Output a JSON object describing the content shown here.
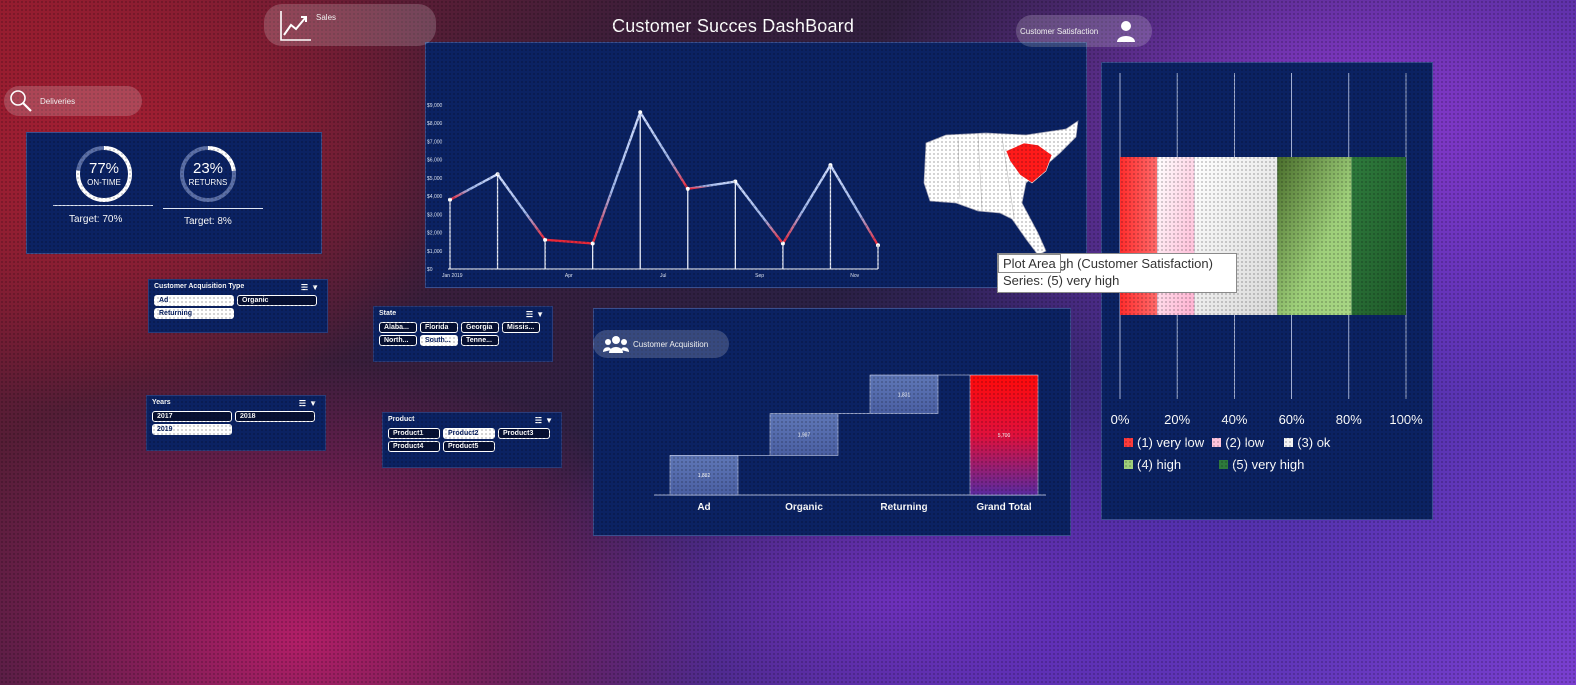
{
  "dashboard": {
    "title": "Customer  Succes DashBoard"
  },
  "nav": {
    "sales": "Sales",
    "deliveries": "Deliveries",
    "customer_satisfaction": "Customer Satisfaction",
    "customer_acquisition": "Customer Acquisition"
  },
  "kpis": [
    {
      "value": "77%",
      "percent": 77,
      "label": "ON-TIME",
      "target": "Target: 70%"
    },
    {
      "value": "23%",
      "percent": 23,
      "label": "RETURNS",
      "target": "Target: 8%"
    }
  ],
  "slicers": {
    "acquisition": {
      "title": "Customer Acquisition Type",
      "items": [
        "Ad",
        "Organic",
        "Returning"
      ],
      "selected": [
        true,
        false,
        true
      ]
    },
    "years": {
      "title": "Years",
      "items": [
        "2017",
        "2018",
        "2019"
      ],
      "selected": [
        false,
        false,
        true
      ]
    },
    "state": {
      "title": "State",
      "items": [
        "Alaba...",
        "Florida",
        "Georgia",
        "Missis...",
        "North...",
        "South...",
        "Tenne..."
      ],
      "selected": [
        false,
        false,
        false,
        false,
        false,
        true,
        false
      ]
    },
    "product": {
      "title": "Product",
      "items": [
        "Product1",
        "Product2",
        "Product3",
        "Product4",
        "Product5"
      ],
      "selected": [
        false,
        true,
        false,
        false,
        false
      ]
    }
  },
  "tooltip": {
    "plot_area": "Plot Area",
    "line1": "gh (Customer Satisfaction)",
    "line2": "Series: (5) very high"
  },
  "colors": {
    "panel": "#0b2262",
    "accent_red": "#ff1a1a",
    "line_light": "#b7c9f0"
  },
  "chart_data": [
    {
      "type": "line",
      "title": "Sales",
      "y_tick_labels": [
        "$0",
        "$1,000",
        "$2,000",
        "$3,000",
        "$4,000",
        "$5,000",
        "$6,000",
        "$7,000",
        "$8,000",
        "$9,000"
      ],
      "x_tick_labels": [
        "Jan 2019",
        "Apr",
        "Jul",
        "Sep",
        "Nov"
      ],
      "ylim": [
        0,
        9000
      ],
      "series": [
        {
          "name": "Sales",
          "values": [
            3800,
            5200,
            1600,
            1400,
            8600,
            4400,
            4800,
            1400,
            5700,
            1300
          ]
        }
      ]
    },
    {
      "type": "bar",
      "subtype": "waterfall",
      "title": "Customer Acquisition",
      "categories": [
        "Ad",
        "Organic",
        "Returning",
        "Grand Total"
      ],
      "values": [
        1882,
        1987,
        1831,
        5700
      ],
      "value_labels": [
        "1,882",
        "1,987",
        "1,831",
        "5,700"
      ]
    },
    {
      "type": "bar",
      "subtype": "100% stacked",
      "title": "Customer Satisfaction",
      "x_tick_labels": [
        "0%",
        "20%",
        "40%",
        "60%",
        "80%",
        "100%"
      ],
      "xlim": [
        0,
        100
      ],
      "series": [
        {
          "name": "(1) very low",
          "value": 13,
          "color": "#ff3b3b"
        },
        {
          "name": "(2) low",
          "value": 13,
          "color": "#ffc4dd"
        },
        {
          "name": "(3) ok",
          "value": 29,
          "color": "#f4f4f4"
        },
        {
          "name": "(4) high",
          "value": 26,
          "color": "#9ecf7a"
        },
        {
          "name": "(5) very high",
          "value": 19,
          "color": "#2e7a3c"
        }
      ]
    },
    {
      "type": "map",
      "title": "State",
      "highlighted": "South Carolina"
    }
  ]
}
